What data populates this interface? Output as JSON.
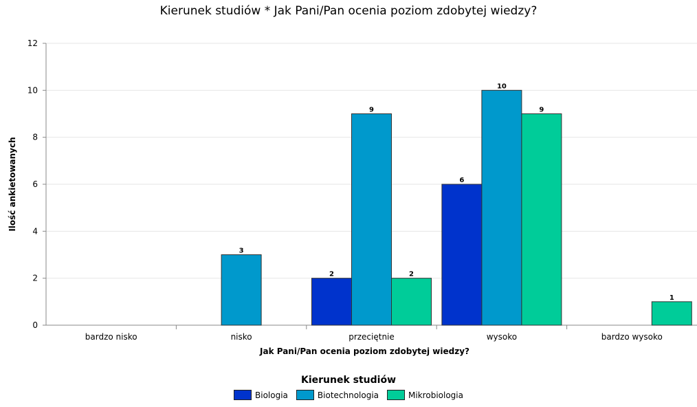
{
  "chart_data": {
    "type": "bar",
    "title": "Kierunek studiów * Jak Pani/Pan ocenia poziom zdobytej wiedzy?",
    "xlabel": "Jak Pani/Pan ocenia poziom zdobytej wiedzy?",
    "ylabel": "Ilość ankietowanych",
    "ylim": [
      0,
      12
    ],
    "yticks": [
      0,
      2,
      4,
      6,
      8,
      10,
      12
    ],
    "grid": true,
    "categories": [
      "bardzo nisko",
      "nisko",
      "przeciętnie",
      "wysoko",
      "bardzo wysoko"
    ],
    "series": [
      {
        "name": "Biologia",
        "color": "#0033cc",
        "values": [
          0,
          0,
          2,
          6,
          0
        ]
      },
      {
        "name": "Biotechnologia",
        "color": "#0099cc",
        "values": [
          0,
          3,
          9,
          10,
          0
        ]
      },
      {
        "name": "Mikrobiologia",
        "color": "#00cc99",
        "values": [
          0,
          0,
          2,
          9,
          1
        ]
      }
    ],
    "legend": {
      "title": "Kierunek studiów",
      "placement": "bottom"
    }
  }
}
